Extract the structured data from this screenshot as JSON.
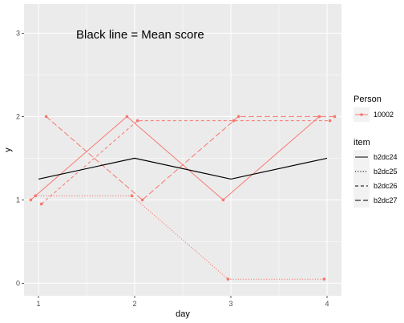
{
  "chart_data": {
    "type": "line",
    "annotation": "Black line = Mean score",
    "xlabel": "day",
    "ylabel": "y",
    "x_ticks": [
      1,
      2,
      3,
      4
    ],
    "y_ticks": [
      0,
      1,
      2,
      3
    ],
    "xlim": [
      0.85,
      4.15
    ],
    "ylim": [
      -0.15,
      3.35
    ],
    "grid": true,
    "colors": {
      "person": "#f8766d",
      "mean": "#000000",
      "panel": "#ebebeb",
      "grid": "#ffffff"
    },
    "mean_line": {
      "x": [
        1,
        2,
        3,
        4
      ],
      "y": [
        1.25,
        1.5,
        1.25,
        1.5
      ]
    },
    "series": [
      {
        "person": "10002",
        "item": "b2dc24",
        "linetype": "solid",
        "x": [
          0.92,
          1.92,
          2.92,
          3.92
        ],
        "y": [
          1,
          2,
          1,
          2
        ]
      },
      {
        "person": "10002",
        "item": "b2dc25",
        "linetype": "dotted",
        "x": [
          0.97,
          1.97,
          2.97,
          3.97
        ],
        "y": [
          1.05,
          1.05,
          0.05,
          0.05
        ]
      },
      {
        "person": "10002",
        "item": "b2dc26",
        "linetype": "dashed",
        "x": [
          1.03,
          2.03,
          3.03,
          4.03
        ],
        "y": [
          0.95,
          1.95,
          1.95,
          1.95
        ]
      },
      {
        "person": "10002",
        "item": "b2dc27",
        "linetype": "longdash",
        "x": [
          1.08,
          2.08,
          3.08,
          4.08
        ],
        "y": [
          2,
          1,
          2,
          2
        ]
      }
    ],
    "legend": {
      "placement": "right",
      "person_title": "Person",
      "person_entries": [
        "10002"
      ],
      "item_title": "item",
      "item_entries": [
        {
          "label": "b2dc24",
          "linetype": "solid"
        },
        {
          "label": "b2dc25",
          "linetype": "dotted"
        },
        {
          "label": "b2dc26",
          "linetype": "dashed"
        },
        {
          "label": "b2dc27",
          "linetype": "longdash"
        }
      ]
    }
  }
}
